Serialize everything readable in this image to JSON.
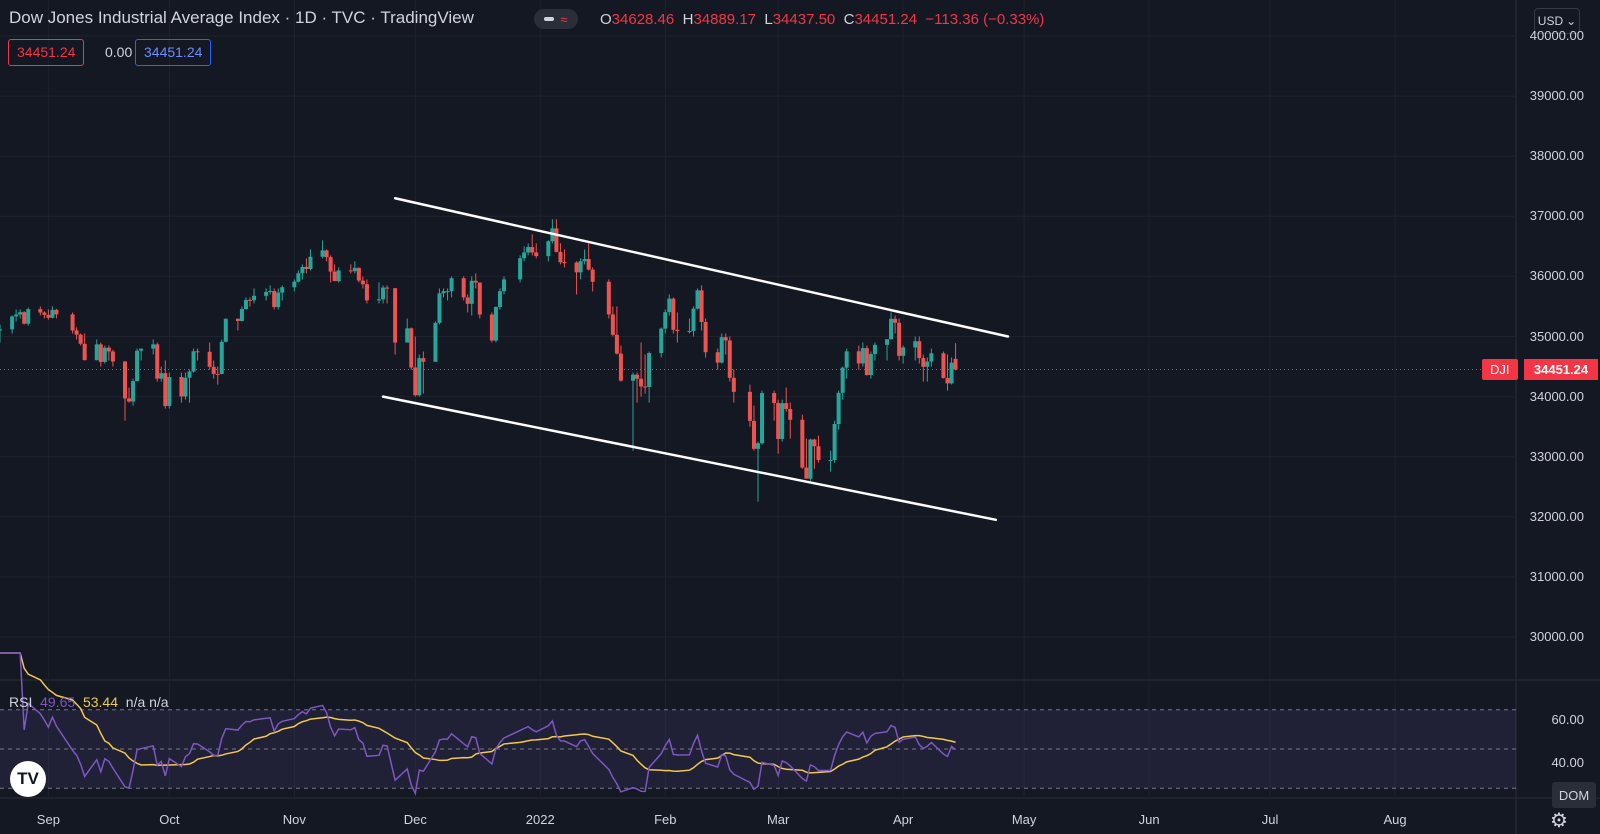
{
  "header": {
    "title": "Dow Jones Industrial Average Index · 1D · TVC · TradingView",
    "ohlc": {
      "o_label": "O",
      "o": "34628.46",
      "h_label": "H",
      "h": "34889.17",
      "l_label": "L",
      "l": "34437.50",
      "c_label": "C",
      "c": "34451.24",
      "change": "−113.36 (−0.33%)"
    },
    "price_boxes": [
      "34451.24",
      "0.00",
      "34451.24"
    ],
    "currency": "USD",
    "status_icon": "wave-icon"
  },
  "price_axis": {
    "ticks": [
      "40000.00",
      "39000.00",
      "38000.00",
      "37000.00",
      "36000.00",
      "35000.00",
      "34000.00",
      "33000.00",
      "32000.00",
      "31000.00",
      "30000.00"
    ],
    "symbol_tag": "DJI",
    "last_price": "34451.24"
  },
  "time_axis": {
    "ticks": [
      "Sep",
      "Oct",
      "Nov",
      "Dec",
      "2022",
      "Feb",
      "Mar",
      "Apr",
      "May",
      "Jun",
      "Jul",
      "Aug"
    ]
  },
  "rsi": {
    "label": "RSI",
    "value": "49.65",
    "ma_value": "53.44",
    "extra": "n/a n/a",
    "ticks": [
      "60.00",
      "40.00"
    ]
  },
  "bottom": {
    "dom_label": "DOM",
    "logo": "TV"
  },
  "colors": {
    "background": "#141823",
    "up": "#26a69a",
    "down": "#ef5350",
    "rsi_line": "#7e57c2",
    "rsi_ma": "#f2c94c",
    "trendline": "#ffffff",
    "price_tag": "#f23645"
  },
  "chart_data": {
    "type": "candlestick",
    "title": "Dow Jones Industrial Average Index",
    "timeframe": "1D",
    "ylim": [
      29500,
      40000
    ],
    "x_range": [
      "2021-08-20",
      "2022-08-31"
    ],
    "ohlc": [
      [
        "2021-08-20",
        35100,
        35200,
        34900,
        35120
      ],
      [
        "2021-08-23",
        35120,
        35350,
        35050,
        35335
      ],
      [
        "2021-08-24",
        35335,
        35450,
        35250,
        35366
      ],
      [
        "2021-08-25",
        35366,
        35450,
        35300,
        35405
      ],
      [
        "2021-08-26",
        35405,
        35420,
        35200,
        35213
      ],
      [
        "2021-08-27",
        35213,
        35480,
        35180,
        35455
      ],
      [
        "2021-08-30",
        35455,
        35500,
        35350,
        35399
      ],
      [
        "2021-08-31",
        35399,
        35420,
        35300,
        35360
      ],
      [
        "2021-09-01",
        35360,
        35450,
        35280,
        35312
      ],
      [
        "2021-09-02",
        35312,
        35500,
        35300,
        35443
      ],
      [
        "2021-09-03",
        35443,
        35460,
        35300,
        35369
      ],
      [
        "2021-09-07",
        35369,
        35400,
        35050,
        35100
      ],
      [
        "2021-09-08",
        35100,
        35150,
        34950,
        35031
      ],
      [
        "2021-09-09",
        35031,
        35050,
        34850,
        34879
      ],
      [
        "2021-09-10",
        34879,
        35050,
        34600,
        34607
      ],
      [
        "2021-09-13",
        34607,
        34950,
        34600,
        34869
      ],
      [
        "2021-09-14",
        34869,
        34900,
        34500,
        34577
      ],
      [
        "2021-09-15",
        34577,
        34850,
        34550,
        34814
      ],
      [
        "2021-09-16",
        34814,
        34850,
        34600,
        34751
      ],
      [
        "2021-09-17",
        34751,
        34780,
        34500,
        34584
      ],
      [
        "2021-09-20",
        34584,
        34590,
        33600,
        33970
      ],
      [
        "2021-09-21",
        33970,
        34150,
        33900,
        33919
      ],
      [
        "2021-09-22",
        33919,
        34300,
        33850,
        34258
      ],
      [
        "2021-09-23",
        34258,
        34800,
        34250,
        34764
      ],
      [
        "2021-09-24",
        34764,
        34800,
        34600,
        34798
      ],
      [
        "2021-09-27",
        34798,
        34950,
        34700,
        34869
      ],
      [
        "2021-09-28",
        34869,
        34900,
        34250,
        34299
      ],
      [
        "2021-09-29",
        34299,
        34500,
        34250,
        34390
      ],
      [
        "2021-09-30",
        34390,
        34600,
        33800,
        33844
      ],
      [
        "2021-10-01",
        33844,
        34400,
        33800,
        34326
      ],
      [
        "2021-10-04",
        34326,
        34400,
        33900,
        34002
      ],
      [
        "2021-10-05",
        34002,
        34400,
        33950,
        34314
      ],
      [
        "2021-10-06",
        34314,
        34450,
        33900,
        34417
      ],
      [
        "2021-10-07",
        34417,
        34800,
        34400,
        34754
      ],
      [
        "2021-10-08",
        34754,
        34800,
        34600,
        34746
      ],
      [
        "2021-10-11",
        34746,
        34900,
        34450,
        34496
      ],
      [
        "2021-10-12",
        34496,
        34600,
        34300,
        34378
      ],
      [
        "2021-10-13",
        34378,
        34500,
        34200,
        34377
      ],
      [
        "2021-10-14",
        34377,
        34950,
        34370,
        34912
      ],
      [
        "2021-10-15",
        34912,
        35300,
        34900,
        35295
      ],
      [
        "2021-10-18",
        35295,
        35300,
        35100,
        35258
      ],
      [
        "2021-10-19",
        35258,
        35500,
        35250,
        35457
      ],
      [
        "2021-10-20",
        35457,
        35650,
        35450,
        35609
      ],
      [
        "2021-10-21",
        35609,
        35650,
        35500,
        35603
      ],
      [
        "2021-10-22",
        35603,
        35800,
        35550,
        35677
      ],
      [
        "2021-10-25",
        35677,
        35800,
        35600,
        35741
      ],
      [
        "2021-10-26",
        35741,
        35850,
        35700,
        35757
      ],
      [
        "2021-10-27",
        35757,
        35800,
        35450,
        35491
      ],
      [
        "2021-10-28",
        35491,
        35800,
        35450,
        35731
      ],
      [
        "2021-10-29",
        35731,
        35850,
        35600,
        35820
      ],
      [
        "2021-11-01",
        35820,
        35950,
        35750,
        35913
      ],
      [
        "2021-11-02",
        35913,
        36100,
        35900,
        36053
      ],
      [
        "2021-11-03",
        36053,
        36200,
        35950,
        36158
      ],
      [
        "2021-11-04",
        36158,
        36300,
        36050,
        36124
      ],
      [
        "2021-11-05",
        36124,
        36450,
        36100,
        36328
      ],
      [
        "2021-11-08",
        36328,
        36600,
        36300,
        36432
      ],
      [
        "2021-11-09",
        36432,
        36450,
        36250,
        36320
      ],
      [
        "2021-11-10",
        36320,
        36350,
        35900,
        36080
      ],
      [
        "2021-11-11",
        36080,
        36200,
        35950,
        35921
      ],
      [
        "2021-11-12",
        35921,
        36150,
        35900,
        36100
      ],
      [
        "2021-11-15",
        36100,
        36200,
        36050,
        36087
      ],
      [
        "2021-11-16",
        36087,
        36250,
        36050,
        36142
      ],
      [
        "2021-11-17",
        36142,
        36150,
        35900,
        35931
      ],
      [
        "2021-11-18",
        35931,
        36000,
        35800,
        35870
      ],
      [
        "2021-11-19",
        35870,
        35950,
        35550,
        35601
      ],
      [
        "2021-11-22",
        35601,
        35900,
        35550,
        35619
      ],
      [
        "2021-11-23",
        35619,
        35850,
        35550,
        35814
      ],
      [
        "2021-11-24",
        35814,
        35850,
        35550,
        35804
      ],
      [
        "2021-11-26",
        35804,
        35806,
        34700,
        34899
      ],
      [
        "2021-11-29",
        34899,
        35300,
        34900,
        35136
      ],
      [
        "2021-11-30",
        35136,
        35150,
        34450,
        34484
      ],
      [
        "2021-12-01",
        34484,
        35000,
        34000,
        34022
      ],
      [
        "2021-12-02",
        34022,
        34700,
        34000,
        34640
      ],
      [
        "2021-12-03",
        34640,
        34750,
        34050,
        34580
      ],
      [
        "2021-12-06",
        34580,
        35250,
        34580,
        35227
      ],
      [
        "2021-12-07",
        35227,
        35800,
        35200,
        35719
      ],
      [
        "2021-12-08",
        35719,
        35800,
        35650,
        35754
      ],
      [
        "2021-12-09",
        35754,
        35800,
        35600,
        35754
      ],
      [
        "2021-12-10",
        35754,
        36000,
        35650,
        35970
      ],
      [
        "2021-12-13",
        35970,
        36000,
        35600,
        35650
      ],
      [
        "2021-12-14",
        35650,
        35700,
        35400,
        35544
      ],
      [
        "2021-12-15",
        35544,
        36000,
        35350,
        35927
      ],
      [
        "2021-12-16",
        35927,
        36050,
        35800,
        35897
      ],
      [
        "2021-12-17",
        35897,
        35900,
        35300,
        35365
      ],
      [
        "2021-12-20",
        35365,
        35400,
        34900,
        34932
      ],
      [
        "2021-12-21",
        34932,
        35500,
        34900,
        35492
      ],
      [
        "2021-12-22",
        35492,
        35800,
        35450,
        35753
      ],
      [
        "2021-12-23",
        35753,
        36000,
        35700,
        35950
      ],
      [
        "2021-12-27",
        35950,
        36350,
        35900,
        36302
      ],
      [
        "2021-12-28",
        36302,
        36500,
        36250,
        36398
      ],
      [
        "2021-12-29",
        36398,
        36550,
        36350,
        36488
      ],
      [
        "2021-12-30",
        36488,
        36700,
        36350,
        36398
      ],
      [
        "2021-12-31",
        36398,
        36550,
        36300,
        36338
      ],
      [
        "2022-01-03",
        36338,
        36600,
        36250,
        36585
      ],
      [
        "2022-01-04",
        36585,
        36950,
        36550,
        36799
      ],
      [
        "2022-01-05",
        36799,
        36950,
        36400,
        36407
      ],
      [
        "2022-01-06",
        36407,
        36550,
        36200,
        36236
      ],
      [
        "2022-01-07",
        36236,
        36450,
        36150,
        36231
      ],
      [
        "2022-01-10",
        36231,
        36250,
        35700,
        36068
      ],
      [
        "2022-01-11",
        36068,
        36300,
        35950,
        36252
      ],
      [
        "2022-01-12",
        36252,
        36450,
        36200,
        36290
      ],
      [
        "2022-01-13",
        36290,
        36550,
        36100,
        36113
      ],
      [
        "2022-01-14",
        36113,
        36150,
        35750,
        35911
      ],
      [
        "2022-01-18",
        35911,
        35950,
        35300,
        35368
      ],
      [
        "2022-01-19",
        35368,
        35500,
        35000,
        35028
      ],
      [
        "2022-01-20",
        35028,
        35500,
        34700,
        34715
      ],
      [
        "2022-01-21",
        34715,
        34850,
        34250,
        34265
      ],
      [
        "2022-01-24",
        34265,
        34400,
        33100,
        34365
      ],
      [
        "2022-01-25",
        34365,
        34400,
        33900,
        34297
      ],
      [
        "2022-01-26",
        34297,
        34900,
        34000,
        34168
      ],
      [
        "2022-01-27",
        34168,
        34700,
        34050,
        34160
      ],
      [
        "2022-01-28",
        34160,
        34750,
        33900,
        34725
      ],
      [
        "2022-01-31",
        34725,
        35150,
        34650,
        35131
      ],
      [
        "2022-02-01",
        35131,
        35450,
        35050,
        35405
      ],
      [
        "2022-02-02",
        35405,
        35700,
        35350,
        35630
      ],
      [
        "2022-02-03",
        35630,
        35650,
        35050,
        35111
      ],
      [
        "2022-02-04",
        35111,
        35400,
        34900,
        35089
      ],
      [
        "2022-02-07",
        35089,
        35300,
        35050,
        35091
      ],
      [
        "2022-02-08",
        35091,
        35500,
        35000,
        35463
      ],
      [
        "2022-02-09",
        35463,
        35800,
        35450,
        35768
      ],
      [
        "2022-02-10",
        35768,
        35850,
        35100,
        35241
      ],
      [
        "2022-02-11",
        35241,
        35300,
        34650,
        34738
      ],
      [
        "2022-02-14",
        34738,
        34800,
        34450,
        34566
      ],
      [
        "2022-02-15",
        34566,
        35050,
        34550,
        34989
      ],
      [
        "2022-02-16",
        34989,
        35050,
        34700,
        34934
      ],
      [
        "2022-02-17",
        34934,
        35000,
        34250,
        34312
      ],
      [
        "2022-02-18",
        34312,
        34450,
        33900,
        34079
      ],
      [
        "2022-02-22",
        34079,
        34200,
        33500,
        33596
      ],
      [
        "2022-02-23",
        33596,
        33850,
        33100,
        33131
      ],
      [
        "2022-02-24",
        33131,
        33250,
        32250,
        33224
      ],
      [
        "2022-02-25",
        33224,
        34100,
        33200,
        34059
      ],
      [
        "2022-02-28",
        34059,
        34100,
        33600,
        33893
      ],
      [
        "2022-03-01",
        33893,
        33950,
        33050,
        33295
      ],
      [
        "2022-03-02",
        33295,
        33950,
        33250,
        33891
      ],
      [
        "2022-03-03",
        33891,
        34150,
        33750,
        33794
      ],
      [
        "2022-03-04",
        33794,
        33900,
        33300,
        33614
      ],
      [
        "2022-03-07",
        33614,
        33700,
        32800,
        32818
      ],
      [
        "2022-03-08",
        32818,
        33300,
        32650,
        32633
      ],
      [
        "2022-03-09",
        32633,
        33300,
        32600,
        33286
      ],
      [
        "2022-03-10",
        33286,
        33300,
        32800,
        33174
      ],
      [
        "2022-03-11",
        33174,
        33350,
        32900,
        32944
      ],
      [
        "2022-03-14",
        32944,
        33100,
        32750,
        32945
      ],
      [
        "2022-03-15",
        32945,
        33600,
        32900,
        33544
      ],
      [
        "2022-03-16",
        33544,
        34100,
        33450,
        34063
      ],
      [
        "2022-03-17",
        34063,
        34500,
        33950,
        34481
      ],
      [
        "2022-03-18",
        34481,
        34800,
        34300,
        34754
      ],
      [
        "2022-03-21",
        34754,
        34850,
        34450,
        34552
      ],
      [
        "2022-03-22",
        34552,
        34900,
        34500,
        34807
      ],
      [
        "2022-03-23",
        34807,
        34850,
        34350,
        34358
      ],
      [
        "2022-03-24",
        34358,
        34750,
        34300,
        34707
      ],
      [
        "2022-03-25",
        34707,
        34900,
        34600,
        34861
      ],
      [
        "2022-03-28",
        34861,
        34950,
        34600,
        34955
      ],
      [
        "2022-03-29",
        34955,
        35400,
        34950,
        35294
      ],
      [
        "2022-03-30",
        35294,
        35350,
        35050,
        35228
      ],
      [
        "2022-03-31",
        35228,
        35300,
        34600,
        34678
      ],
      [
        "2022-04-01",
        34678,
        34850,
        34550,
        34818
      ],
      [
        "2022-04-04",
        34818,
        35000,
        34600,
        34921
      ],
      [
        "2022-04-05",
        34921,
        35000,
        34550,
        34641
      ],
      [
        "2022-04-06",
        34641,
        34700,
        34250,
        34496
      ],
      [
        "2022-04-07",
        34496,
        34650,
        34250,
        34583
      ],
      [
        "2022-04-08",
        34583,
        34800,
        34500,
        34721
      ],
      [
        "2022-04-11",
        34721,
        34750,
        34300,
        34308
      ],
      [
        "2022-04-12",
        34308,
        34700,
        34100,
        34220
      ],
      [
        "2022-04-13",
        34220,
        34650,
        34200,
        34564
      ],
      [
        "2022-04-14",
        34628,
        34889,
        34437,
        34451
      ]
    ],
    "trendlines": [
      {
        "name": "upper",
        "points": [
          [
            "2021-11-26",
            37300
          ],
          [
            "2022-04-27",
            35000
          ]
        ]
      },
      {
        "name": "lower",
        "points": [
          [
            "2021-11-23",
            34000
          ],
          [
            "2022-04-24",
            31950
          ]
        ]
      }
    ],
    "last_price_line": 34451.24,
    "rsi_band": [
      30,
      70
    ],
    "rsi_midline": 50
  }
}
